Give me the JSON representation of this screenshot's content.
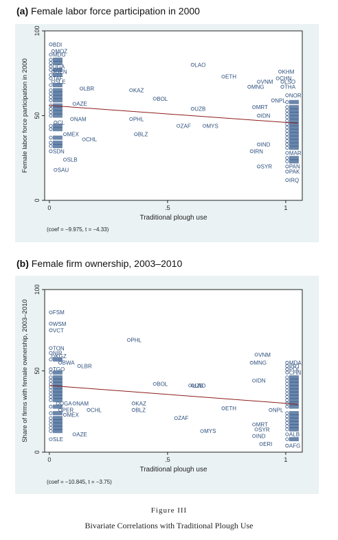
{
  "figure": {
    "label": "Figure III",
    "caption": "Bivariate Correlations with Traditional Plough Use"
  },
  "chart_data": [
    {
      "type": "scatter",
      "panel_letter": "(a)",
      "title": "Female labor force participation in 2000",
      "xlabel": "Traditional plough use",
      "ylabel": "Female labor force participation in 2000",
      "xlim": [
        -0.02,
        1.07
      ],
      "ylim": [
        0,
        100
      ],
      "xticks": [
        {
          "v": 0,
          "label": "0"
        },
        {
          "v": 0.5,
          "label": ".5"
        },
        {
          "v": 1,
          "label": "1"
        }
      ],
      "yticks": [
        {
          "v": 0,
          "label": "0"
        },
        {
          "v": 50,
          "label": "50"
        },
        {
          "v": 100,
          "label": "100"
        }
      ],
      "fit_line": {
        "x": [
          0,
          1.05
        ],
        "y": [
          56,
          45.5
        ]
      },
      "annotation": "(coef = −9.975, t = −4.33)",
      "labeled_points": [
        {
          "x": 0.0,
          "y": 92,
          "label": "BDI"
        },
        {
          "x": 0.01,
          "y": 88,
          "label": "MOZ"
        },
        {
          "x": 0.0,
          "y": 86,
          "label": "MDG"
        },
        {
          "x": 0.0,
          "y": 79,
          "label": "UGA"
        },
        {
          "x": 0.01,
          "y": 76,
          "label": "GEN"
        },
        {
          "x": 0.0,
          "y": 72,
          "label": "TAF"
        },
        {
          "x": 0.01,
          "y": 70,
          "label": "SLE"
        },
        {
          "x": 0.13,
          "y": 66,
          "label": "LBR"
        },
        {
          "x": 0.1,
          "y": 57,
          "label": "AZE"
        },
        {
          "x": 0.09,
          "y": 48,
          "label": "NAM"
        },
        {
          "x": 0.02,
          "y": 46,
          "label": "CL"
        },
        {
          "x": 0.06,
          "y": 39,
          "label": "MEX"
        },
        {
          "x": 0.14,
          "y": 36,
          "label": "CHL"
        },
        {
          "x": 0.0,
          "y": 29,
          "label": "SDN"
        },
        {
          "x": 0.06,
          "y": 24,
          "label": "SLB"
        },
        {
          "x": 0.02,
          "y": 18,
          "label": "SAU"
        },
        {
          "x": 0.34,
          "y": 65,
          "label": "KAZ"
        },
        {
          "x": 0.44,
          "y": 60,
          "label": "BOL"
        },
        {
          "x": 0.34,
          "y": 48,
          "label": "PHL"
        },
        {
          "x": 0.36,
          "y": 39,
          "label": "BLZ"
        },
        {
          "x": 0.6,
          "y": 80,
          "label": "LAO"
        },
        {
          "x": 0.73,
          "y": 73,
          "label": "ETH"
        },
        {
          "x": 0.6,
          "y": 54,
          "label": "UZB"
        },
        {
          "x": 0.54,
          "y": 44,
          "label": "ZAF"
        },
        {
          "x": 0.65,
          "y": 44,
          "label": "MYS"
        },
        {
          "x": 0.84,
          "y": 67,
          "label": "MNG"
        },
        {
          "x": 0.88,
          "y": 70,
          "label": "VNM"
        },
        {
          "x": 0.96,
          "y": 72,
          "label": "CHN"
        },
        {
          "x": 0.97,
          "y": 76,
          "label": "KHM"
        },
        {
          "x": 0.98,
          "y": 70,
          "label": "LSO"
        },
        {
          "x": 0.98,
          "y": 67,
          "label": "THA"
        },
        {
          "x": 1.0,
          "y": 62,
          "label": "NOR"
        },
        {
          "x": 0.94,
          "y": 59,
          "label": "NPL"
        },
        {
          "x": 0.86,
          "y": 55,
          "label": "MRT"
        },
        {
          "x": 0.88,
          "y": 50,
          "label": "IDN"
        },
        {
          "x": 0.88,
          "y": 33,
          "label": "IND"
        },
        {
          "x": 0.85,
          "y": 29,
          "label": "IRN"
        },
        {
          "x": 0.88,
          "y": 20,
          "label": "SYR"
        },
        {
          "x": 1.0,
          "y": 28,
          "label": "MAR"
        },
        {
          "x": 1.0,
          "y": 20,
          "label": "PAN"
        },
        {
          "x": 1.0,
          "y": 17,
          "label": "PAK"
        },
        {
          "x": 1.0,
          "y": 12,
          "label": "IRQ"
        }
      ],
      "cluster_points": [
        {
          "x": 0.0,
          "y": 83
        },
        {
          "x": 0.0,
          "y": 81
        },
        {
          "x": 0.0,
          "y": 77
        },
        {
          "x": 0.0,
          "y": 74
        },
        {
          "x": 0.0,
          "y": 68
        },
        {
          "x": 0.0,
          "y": 65
        },
        {
          "x": 0.0,
          "y": 63
        },
        {
          "x": 0.0,
          "y": 61
        },
        {
          "x": 0.0,
          "y": 59
        },
        {
          "x": 0.0,
          "y": 56
        },
        {
          "x": 0.0,
          "y": 54
        },
        {
          "x": 0.0,
          "y": 52
        },
        {
          "x": 0.0,
          "y": 50
        },
        {
          "x": 0.0,
          "y": 44
        },
        {
          "x": 0.0,
          "y": 42
        },
        {
          "x": 0.0,
          "y": 37
        },
        {
          "x": 0.0,
          "y": 34
        },
        {
          "x": 0.0,
          "y": 32
        },
        {
          "x": 1.0,
          "y": 58
        },
        {
          "x": 1.0,
          "y": 55
        },
        {
          "x": 1.0,
          "y": 53
        },
        {
          "x": 1.0,
          "y": 51
        },
        {
          "x": 1.0,
          "y": 49
        },
        {
          "x": 1.0,
          "y": 47
        },
        {
          "x": 1.0,
          "y": 45
        },
        {
          "x": 1.0,
          "y": 43
        },
        {
          "x": 1.0,
          "y": 41
        },
        {
          "x": 1.0,
          "y": 39
        },
        {
          "x": 1.0,
          "y": 37
        },
        {
          "x": 1.0,
          "y": 35
        },
        {
          "x": 1.0,
          "y": 33
        },
        {
          "x": 1.0,
          "y": 31
        },
        {
          "x": 1.0,
          "y": 25
        },
        {
          "x": 1.0,
          "y": 23
        }
      ]
    },
    {
      "type": "scatter",
      "panel_letter": "(b)",
      "title": "Female firm ownership, 2003–2010",
      "xlabel": "Traditional plough use",
      "ylabel": "Share of firms with female ownership, 2003–2010",
      "xlim": [
        -0.02,
        1.07
      ],
      "ylim": [
        0,
        100
      ],
      "xticks": [
        {
          "v": 0,
          "label": "0"
        },
        {
          "v": 0.5,
          "label": ".5"
        },
        {
          "v": 1,
          "label": "1"
        }
      ],
      "yticks": [
        {
          "v": 0,
          "label": "0"
        },
        {
          "v": 50,
          "label": "50"
        },
        {
          "v": 100,
          "label": "100"
        }
      ],
      "fit_line": {
        "x": [
          0,
          1.05
        ],
        "y": [
          41,
          29.5
        ]
      },
      "annotation": "(coef = −10.845, t = −3.75)",
      "labeled_points": [
        {
          "x": 0.0,
          "y": 86,
          "label": "FSM"
        },
        {
          "x": 0.0,
          "y": 79,
          "label": "WSM"
        },
        {
          "x": 0.0,
          "y": 75,
          "label": "VCT"
        },
        {
          "x": 0.0,
          "y": 64,
          "label": "TON"
        },
        {
          "x": 0.0,
          "y": 61,
          "label": "NIR"
        },
        {
          "x": 0.01,
          "y": 59,
          "label": "KGZ"
        },
        {
          "x": 0.04,
          "y": 55,
          "label": "BWA"
        },
        {
          "x": 0.12,
          "y": 53,
          "label": "LBR"
        },
        {
          "x": 0.0,
          "y": 51,
          "label": "TGO"
        },
        {
          "x": 0.03,
          "y": 30,
          "label": "UGA"
        },
        {
          "x": 0.1,
          "y": 30,
          "label": "NAM"
        },
        {
          "x": 0.04,
          "y": 26,
          "label": "PER"
        },
        {
          "x": 0.16,
          "y": 26,
          "label": "CHL"
        },
        {
          "x": 0.06,
          "y": 23,
          "label": "MEX"
        },
        {
          "x": 0.0,
          "y": 8,
          "label": "SLE"
        },
        {
          "x": 0.1,
          "y": 11,
          "label": "AZE"
        },
        {
          "x": 0.33,
          "y": 69,
          "label": "PHL"
        },
        {
          "x": 0.44,
          "y": 42,
          "label": "BOL"
        },
        {
          "x": 0.35,
          "y": 30,
          "label": "KAZ"
        },
        {
          "x": 0.35,
          "y": 26,
          "label": "BLZ"
        },
        {
          "x": 0.53,
          "y": 21,
          "label": "ZAF"
        },
        {
          "x": 0.59,
          "y": 41,
          "label": "UZB"
        },
        {
          "x": 0.6,
          "y": 41,
          "label": "LAO"
        },
        {
          "x": 0.73,
          "y": 27,
          "label": "ETH"
        },
        {
          "x": 0.64,
          "y": 13,
          "label": "MYS"
        },
        {
          "x": 0.87,
          "y": 60,
          "label": "VNM"
        },
        {
          "x": 0.85,
          "y": 55,
          "label": "MNG"
        },
        {
          "x": 0.86,
          "y": 44,
          "label": "IDN"
        },
        {
          "x": 0.93,
          "y": 26,
          "label": "NPL"
        },
        {
          "x": 0.86,
          "y": 17,
          "label": "MRT"
        },
        {
          "x": 0.87,
          "y": 14,
          "label": "SYR"
        },
        {
          "x": 0.86,
          "y": 10,
          "label": "IND"
        },
        {
          "x": 0.89,
          "y": 5,
          "label": "ERI"
        },
        {
          "x": 1.0,
          "y": 55,
          "label": "MDA"
        },
        {
          "x": 1.0,
          "y": 53,
          "label": "PRT"
        },
        {
          "x": 1.0,
          "y": 51,
          "label": "POL"
        },
        {
          "x": 1.0,
          "y": 49,
          "label": "CHN"
        },
        {
          "x": 1.0,
          "y": 11,
          "label": "ALB"
        },
        {
          "x": 1.0,
          "y": 4,
          "label": "AFG"
        }
      ],
      "cluster_points": [
        {
          "x": 0.0,
          "y": 57
        },
        {
          "x": 0.0,
          "y": 49
        },
        {
          "x": 0.0,
          "y": 46
        },
        {
          "x": 0.0,
          "y": 44
        },
        {
          "x": 0.0,
          "y": 42
        },
        {
          "x": 0.0,
          "y": 40
        },
        {
          "x": 0.0,
          "y": 38
        },
        {
          "x": 0.0,
          "y": 36
        },
        {
          "x": 0.0,
          "y": 34
        },
        {
          "x": 0.0,
          "y": 32
        },
        {
          "x": 0.0,
          "y": 28
        },
        {
          "x": 0.0,
          "y": 24
        },
        {
          "x": 0.0,
          "y": 21
        },
        {
          "x": 0.0,
          "y": 19
        },
        {
          "x": 0.0,
          "y": 17
        },
        {
          "x": 0.0,
          "y": 15
        },
        {
          "x": 0.0,
          "y": 13
        },
        {
          "x": 1.0,
          "y": 46
        },
        {
          "x": 1.0,
          "y": 44
        },
        {
          "x": 1.0,
          "y": 42
        },
        {
          "x": 1.0,
          "y": 40
        },
        {
          "x": 1.0,
          "y": 38
        },
        {
          "x": 1.0,
          "y": 36
        },
        {
          "x": 1.0,
          "y": 34
        },
        {
          "x": 1.0,
          "y": 32
        },
        {
          "x": 1.0,
          "y": 30
        },
        {
          "x": 1.0,
          "y": 28
        },
        {
          "x": 1.0,
          "y": 24
        },
        {
          "x": 1.0,
          "y": 22
        },
        {
          "x": 1.0,
          "y": 20
        },
        {
          "x": 1.0,
          "y": 18
        },
        {
          "x": 1.0,
          "y": 16
        },
        {
          "x": 1.0,
          "y": 14
        },
        {
          "x": 1.0,
          "y": 8
        }
      ]
    }
  ]
}
